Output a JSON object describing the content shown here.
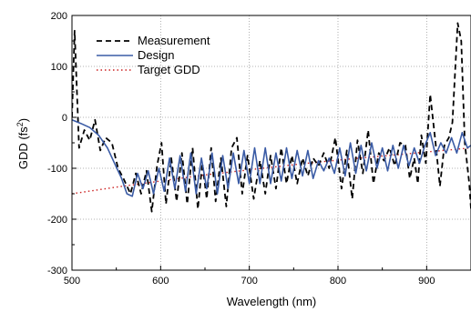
{
  "chart_data": {
    "type": "line",
    "title": "",
    "xlabel": "Wavelength (nm)",
    "ylabel_main": "GDD  (fs",
    "ylabel_sup": "2",
    "ylabel_close": ")",
    "xlim": [
      500,
      950
    ],
    "ylim": [
      -300,
      200
    ],
    "xticks": [
      500,
      600,
      700,
      800,
      900
    ],
    "yticks": [
      -300,
      -200,
      -100,
      0,
      100,
      200
    ],
    "x_minor_step": 50,
    "y_minor_step": 50,
    "grid": "dotted",
    "legend": "top-left",
    "series": [
      {
        "name": "Measurement",
        "color": "#000000",
        "style": "dashed",
        "points": [
          [
            500,
            0
          ],
          [
            503,
            170
          ],
          [
            508,
            -60
          ],
          [
            514,
            -25
          ],
          [
            520,
            -45
          ],
          [
            526,
            -5
          ],
          [
            532,
            -65
          ],
          [
            538,
            -40
          ],
          [
            545,
            -50
          ],
          [
            552,
            -100
          ],
          [
            558,
            -120
          ],
          [
            566,
            -150
          ],
          [
            572,
            -110
          ],
          [
            578,
            -150
          ],
          [
            584,
            -105
          ],
          [
            590,
            -185
          ],
          [
            596,
            -95
          ],
          [
            601,
            -50
          ],
          [
            606,
            -170
          ],
          [
            612,
            -80
          ],
          [
            618,
            -165
          ],
          [
            624,
            -70
          ],
          [
            630,
            -170
          ],
          [
            636,
            -60
          ],
          [
            642,
            -180
          ],
          [
            647,
            -90
          ],
          [
            652,
            -160
          ],
          [
            657,
            -60
          ],
          [
            662,
            -165
          ],
          [
            668,
            -80
          ],
          [
            674,
            -175
          ],
          [
            680,
            -60
          ],
          [
            686,
            -40
          ],
          [
            692,
            -150
          ],
          [
            698,
            -75
          ],
          [
            705,
            -160
          ],
          [
            712,
            -85
          ],
          [
            718,
            -150
          ],
          [
            724,
            -75
          ],
          [
            730,
            -140
          ],
          [
            736,
            -60
          ],
          [
            742,
            -130
          ],
          [
            748,
            -75
          ],
          [
            754,
            -130
          ],
          [
            760,
            -80
          ],
          [
            766,
            -115
          ],
          [
            772,
            -80
          ],
          [
            778,
            -95
          ],
          [
            784,
            -70
          ],
          [
            790,
            -100
          ],
          [
            797,
            -40
          ],
          [
            804,
            -140
          ],
          [
            810,
            -65
          ],
          [
            816,
            -160
          ],
          [
            822,
            -45
          ],
          [
            828,
            -110
          ],
          [
            834,
            -25
          ],
          [
            840,
            -130
          ],
          [
            846,
            -70
          ],
          [
            852,
            -85
          ],
          [
            858,
            -60
          ],
          [
            864,
            -95
          ],
          [
            870,
            -50
          ],
          [
            876,
            -55
          ],
          [
            881,
            -120
          ],
          [
            886,
            -80
          ],
          [
            890,
            -130
          ],
          [
            894,
            -35
          ],
          [
            899,
            -90
          ],
          [
            904,
            45
          ],
          [
            910,
            -50
          ],
          [
            915,
            -135
          ],
          [
            920,
            -55
          ],
          [
            925,
            -40
          ],
          [
            929,
            -10
          ],
          [
            935,
            185
          ],
          [
            939,
            150
          ],
          [
            943,
            -50
          ],
          [
            948,
            -130
          ],
          [
            950,
            -180
          ]
        ]
      },
      {
        "name": "Design",
        "color": "#3a5ba5",
        "style": "solid",
        "points": [
          [
            500,
            -5
          ],
          [
            510,
            -12
          ],
          [
            520,
            -20
          ],
          [
            530,
            -35
          ],
          [
            540,
            -60
          ],
          [
            548,
            -90
          ],
          [
            556,
            -120
          ],
          [
            562,
            -150
          ],
          [
            568,
            -155
          ],
          [
            574,
            -110
          ],
          [
            580,
            -140
          ],
          [
            586,
            -105
          ],
          [
            592,
            -150
          ],
          [
            598,
            -100
          ],
          [
            604,
            -145
          ],
          [
            610,
            -80
          ],
          [
            616,
            -140
          ],
          [
            622,
            -75
          ],
          [
            628,
            -145
          ],
          [
            634,
            -70
          ],
          [
            640,
            -150
          ],
          [
            646,
            -80
          ],
          [
            652,
            -140
          ],
          [
            658,
            -70
          ],
          [
            664,
            -150
          ],
          [
            670,
            -75
          ],
          [
            676,
            -140
          ],
          [
            682,
            -70
          ],
          [
            688,
            -130
          ],
          [
            694,
            -65
          ],
          [
            700,
            -130
          ],
          [
            706,
            -60
          ],
          [
            712,
            -130
          ],
          [
            718,
            -60
          ],
          [
            724,
            -130
          ],
          [
            730,
            -70
          ],
          [
            736,
            -125
          ],
          [
            742,
            -60
          ],
          [
            748,
            -120
          ],
          [
            754,
            -65
          ],
          [
            760,
            -115
          ],
          [
            766,
            -65
          ],
          [
            772,
            -120
          ],
          [
            778,
            -85
          ],
          [
            784,
            -105
          ],
          [
            790,
            -80
          ],
          [
            796,
            -110
          ],
          [
            802,
            -60
          ],
          [
            808,
            -115
          ],
          [
            814,
            -50
          ],
          [
            820,
            -110
          ],
          [
            826,
            -55
          ],
          [
            832,
            -105
          ],
          [
            838,
            -50
          ],
          [
            844,
            -100
          ],
          [
            850,
            -60
          ],
          [
            856,
            -105
          ],
          [
            862,
            -55
          ],
          [
            868,
            -100
          ],
          [
            874,
            -55
          ],
          [
            880,
            -95
          ],
          [
            886,
            -60
          ],
          [
            892,
            -90
          ],
          [
            898,
            -55
          ],
          [
            904,
            -30
          ],
          [
            910,
            -75
          ],
          [
            916,
            -50
          ],
          [
            922,
            -70
          ],
          [
            928,
            -40
          ],
          [
            934,
            -70
          ],
          [
            940,
            -30
          ],
          [
            946,
            -60
          ],
          [
            950,
            -55
          ]
        ]
      },
      {
        "name": "Target GDD",
        "color": "#cc2222",
        "style": "dotted",
        "points": [
          [
            500,
            -150
          ],
          [
            550,
            -137
          ],
          [
            600,
            -125
          ],
          [
            650,
            -113
          ],
          [
            700,
            -103
          ],
          [
            750,
            -93
          ],
          [
            800,
            -84
          ],
          [
            850,
            -76
          ],
          [
            900,
            -68
          ],
          [
            950,
            -60
          ]
        ]
      }
    ]
  }
}
